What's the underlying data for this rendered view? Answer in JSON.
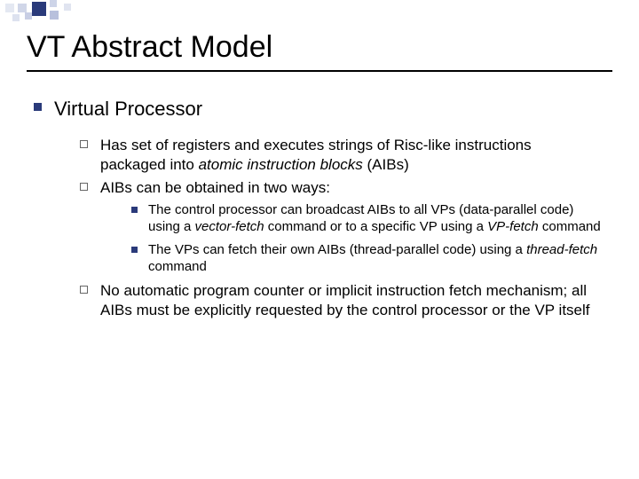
{
  "colors": {
    "bullet_square": "#2a3a7a",
    "hollow_border": "#666666",
    "text": "#000000",
    "background": "#ffffff",
    "title_rule": "#000000"
  },
  "typography": {
    "title_fontsize": 34,
    "l1_fontsize": 22,
    "l2_fontsize": 17,
    "l3_fontsize": 15,
    "font_family": "Arial"
  },
  "title": "VT Abstract Model",
  "l1": {
    "text": "Virtual Processor"
  },
  "l2": {
    "item0_pre": "Has set of registers and executes strings of Risc-like instructions packaged into ",
    "item0_em": "atomic instruction blocks",
    "item0_post": " (AIBs)",
    "item1": "AIBs can be obtained in two ways:",
    "item2": "No automatic program counter or implicit instruction fetch mechanism; all AIBs must be explicitly requested by the control processor or the VP itself"
  },
  "l3": {
    "item0_a": "The control processor can broadcast AIBs to all VPs (data-parallel code) using a ",
    "item0_em1": "vector-fetch",
    "item0_b": " command or to a specific VP using a ",
    "item0_em2": "VP-fetch",
    "item0_c": " command",
    "item1_a": "The VPs can fetch their own AIBs (thread-parallel code) using a ",
    "item1_em": "thread-fetch",
    "item1_b": " command"
  }
}
